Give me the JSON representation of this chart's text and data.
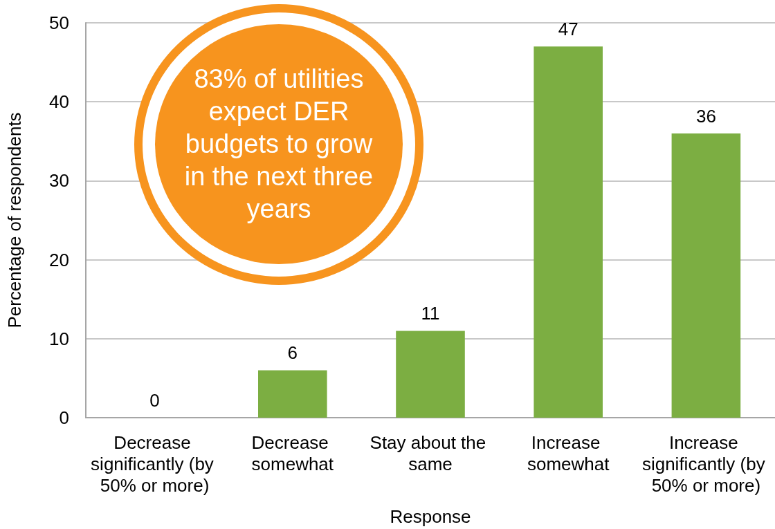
{
  "chart_data": {
    "type": "bar",
    "categories": [
      "Decrease significantly (by 50% or more)",
      "Decrease somewhat",
      "Stay about the same",
      "Increase somewhat",
      "Increase significantly (by 50% or more)"
    ],
    "values": [
      0,
      6,
      11,
      47,
      36
    ],
    "color": "#7cae42",
    "xlabel": "Response",
    "ylabel": "Percentage of respondents",
    "ylim": [
      0,
      50
    ],
    "yticks": [
      0,
      10,
      20,
      30,
      40,
      50
    ],
    "grid": "y",
    "data_labels": true,
    "annotations": [
      "83% of utilities expect DER budgets to grow in the next three years"
    ]
  }
}
